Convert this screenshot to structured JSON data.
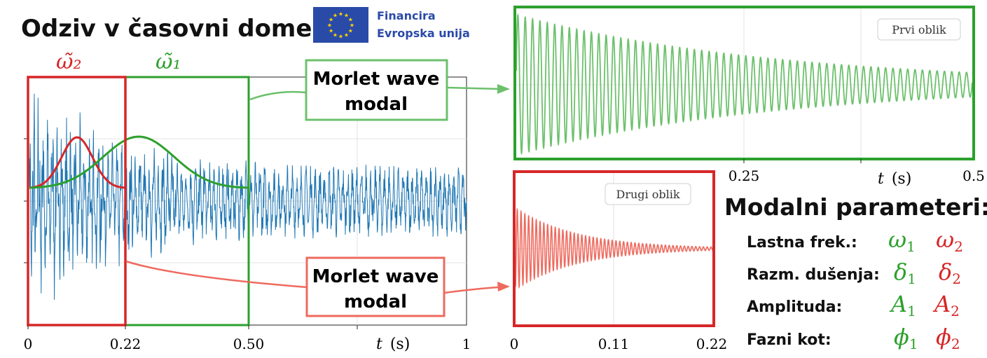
{
  "title": "Odziv v časovni domeni:",
  "eu_logo": {
    "line1": "Financira",
    "line2": "Evropska unija",
    "flag_color": "#2a4aa8",
    "star_color": "#ffd400",
    "text_color": "#2a4aa8"
  },
  "colors": {
    "signal": "#1f77b4",
    "mode1": "#2ca02c",
    "mode1_light": "#6cc06c",
    "mode2": "#d62728",
    "mode2_light": "#ee6a5e"
  },
  "window_labels": {
    "omega2": "ω̃₂",
    "omega1": "ω̃₁"
  },
  "callouts": {
    "top": {
      "line1": "Morlet wave",
      "line2": "modal"
    },
    "bottom": {
      "line1": "Morlet wave",
      "line2": "modal"
    }
  },
  "main_plot": {
    "x_ticks": [
      "0",
      "0.22",
      "0.50",
      "1"
    ],
    "x_label_var": "t",
    "x_label_unit": "(s)",
    "x_range": [
      0,
      1
    ],
    "windows": [
      {
        "name": "window-2",
        "from": 0,
        "to": 0.22
      },
      {
        "name": "window-1",
        "from": 0,
        "to": 0.5
      }
    ]
  },
  "mode1_plot": {
    "legend": "Prvi oblik",
    "x_ticks": [
      "0.25",
      "0.5"
    ],
    "x_label_var": "t",
    "x_label_unit": "(s)",
    "x_range": [
      0,
      0.5
    ]
  },
  "mode2_plot": {
    "legend": "Drugi oblik",
    "x_ticks": [
      "0",
      "0.11",
      "0.22"
    ],
    "x_range": [
      0,
      0.22
    ]
  },
  "modal": {
    "heading": "Modalni parameteri:",
    "rows": [
      {
        "label": "Lastna frek.:",
        "sym": "ω"
      },
      {
        "label": "Razm. dušenja:",
        "sym": "δ"
      },
      {
        "label": "Amplituda:",
        "sym": "A"
      },
      {
        "label": "Fazni kot:",
        "sym": "ϕ"
      }
    ],
    "sub1": "1",
    "sub2": "2"
  }
}
